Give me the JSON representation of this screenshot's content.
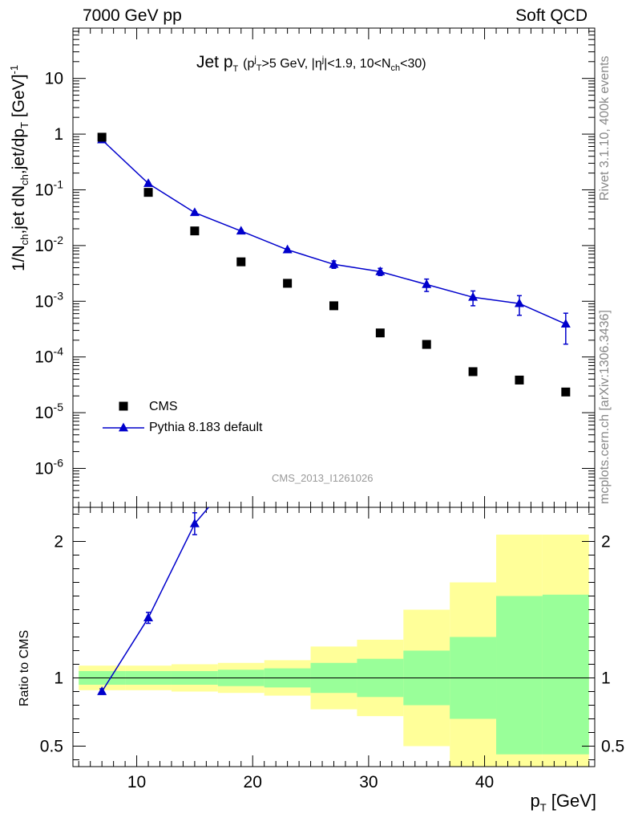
{
  "header": {
    "left": "7000 GeV pp",
    "right": "Soft QCD"
  },
  "side_text": {
    "rivet": "Rivet 3.1.10,  400k events",
    "site": "mcplots.cern.ch [arXiv:1306.3436]"
  },
  "analysis_label": "CMS_2013_I1261026",
  "title": {
    "main": "Jet p",
    "main_sub": "T",
    "cuts_pre": "(p",
    "cuts_sub1": "T",
    "cuts_sup1": "j",
    "cuts_mid": ">5 GeV, |η",
    "cuts_sup2": "j",
    "cuts_mid2": "|<1.9, 10<N",
    "cuts_sub2": "ch",
    "cuts_post": "<30)"
  },
  "axes": {
    "ylabel": {
      "a": "1/N",
      "a_sub": "ch",
      "b": ",jet dN",
      "b_sub": "ch",
      "c": ",jet/dp",
      "c_sub": "T",
      "d": " [GeV]",
      "d_sup": "-1"
    },
    "ratio_ylabel": "Ratio to CMS",
    "xlabel": {
      "a": "p",
      "a_sub": "T",
      "b": " [GeV]"
    }
  },
  "legend": {
    "cms": "CMS",
    "pythia": "Pythia 8.183 default"
  },
  "colors": {
    "pythia": "#0000cc",
    "data": "#000000",
    "band_inner": "#99ff99",
    "band_outer": "#ffff99"
  },
  "chart_data": {
    "type": "scatter",
    "x_range": [
      4.5,
      49.5
    ],
    "y_log_range": [
      2e-07,
      80
    ],
    "x_ticks": [
      10,
      20,
      30,
      40
    ],
    "y_ticks": [
      {
        "value": 1e-06,
        "label_base": "10",
        "label_exp": "-6"
      },
      {
        "value": 1e-05,
        "label_base": "10",
        "label_exp": "-5"
      },
      {
        "value": 0.0001,
        "label_base": "10",
        "label_exp": "-4"
      },
      {
        "value": 0.001,
        "label_base": "10",
        "label_exp": "-3"
      },
      {
        "value": 0.01,
        "label_base": "10",
        "label_exp": "-2"
      },
      {
        "value": 0.1,
        "label_base": "10",
        "label_exp": "-1"
      },
      {
        "value": 1,
        "label_base": "1",
        "label_exp": ""
      },
      {
        "value": 10,
        "label_base": "10",
        "label_exp": ""
      }
    ],
    "bins": [
      5,
      9,
      13,
      17,
      21,
      25,
      29,
      33,
      37,
      41,
      45,
      49
    ],
    "series": [
      {
        "name": "CMS",
        "x": [
          7,
          11,
          15,
          19,
          23,
          27,
          31,
          35,
          39,
          43,
          47
        ],
        "y": [
          0.88,
          0.09,
          0.0183,
          0.0051,
          0.0021,
          0.00083,
          0.00027,
          0.000168,
          5.45e-05,
          3.85e-05,
          2.35e-05
        ]
      },
      {
        "name": "Pythia 8.183 default",
        "x": [
          7,
          11,
          15,
          19,
          23,
          27,
          31,
          35,
          39,
          43,
          47
        ],
        "y": [
          0.79,
          0.13,
          0.039,
          0.0182,
          0.0084,
          0.0046,
          0.0034,
          0.002,
          0.00118,
          0.00091,
          0.00039
        ],
        "y_err": [
          0.03,
          0.005,
          0.0015,
          0.0007,
          0.0004,
          0.0007,
          0.0005,
          0.0005,
          0.00035,
          0.00035,
          0.00022
        ]
      }
    ],
    "ratio": {
      "y_range": [
        0.35,
        2.25
      ],
      "y_ticks": [
        0.5,
        1,
        2
      ],
      "y_tick_labels": [
        "0.5",
        "1",
        "2"
      ],
      "inner_band": [
        [
          0.95,
          1.05
        ],
        [
          0.95,
          1.05
        ],
        [
          0.95,
          1.05
        ],
        [
          0.94,
          1.06
        ],
        [
          0.93,
          1.07
        ],
        [
          0.89,
          1.11
        ],
        [
          0.86,
          1.14
        ],
        [
          0.8,
          1.2
        ],
        [
          0.7,
          1.3
        ],
        [
          0.44,
          1.6
        ],
        [
          0.44,
          1.61
        ]
      ],
      "outer_band": [
        [
          0.91,
          1.09
        ],
        [
          0.91,
          1.09
        ],
        [
          0.9,
          1.1
        ],
        [
          0.89,
          1.11
        ],
        [
          0.87,
          1.13
        ],
        [
          0.77,
          1.23
        ],
        [
          0.72,
          1.28
        ],
        [
          0.5,
          1.5
        ],
        [
          0.35,
          1.7
        ],
        [
          0.35,
          2.05
        ],
        [
          0.35,
          2.05
        ]
      ],
      "pythia": {
        "x": [
          7,
          11,
          15
        ],
        "y": [
          0.9,
          1.44,
          2.13
        ],
        "y_err": [
          0.02,
          0.04,
          0.08
        ],
        "line_to": {
          "x": 16.2,
          "y": 2.25
        }
      }
    }
  }
}
